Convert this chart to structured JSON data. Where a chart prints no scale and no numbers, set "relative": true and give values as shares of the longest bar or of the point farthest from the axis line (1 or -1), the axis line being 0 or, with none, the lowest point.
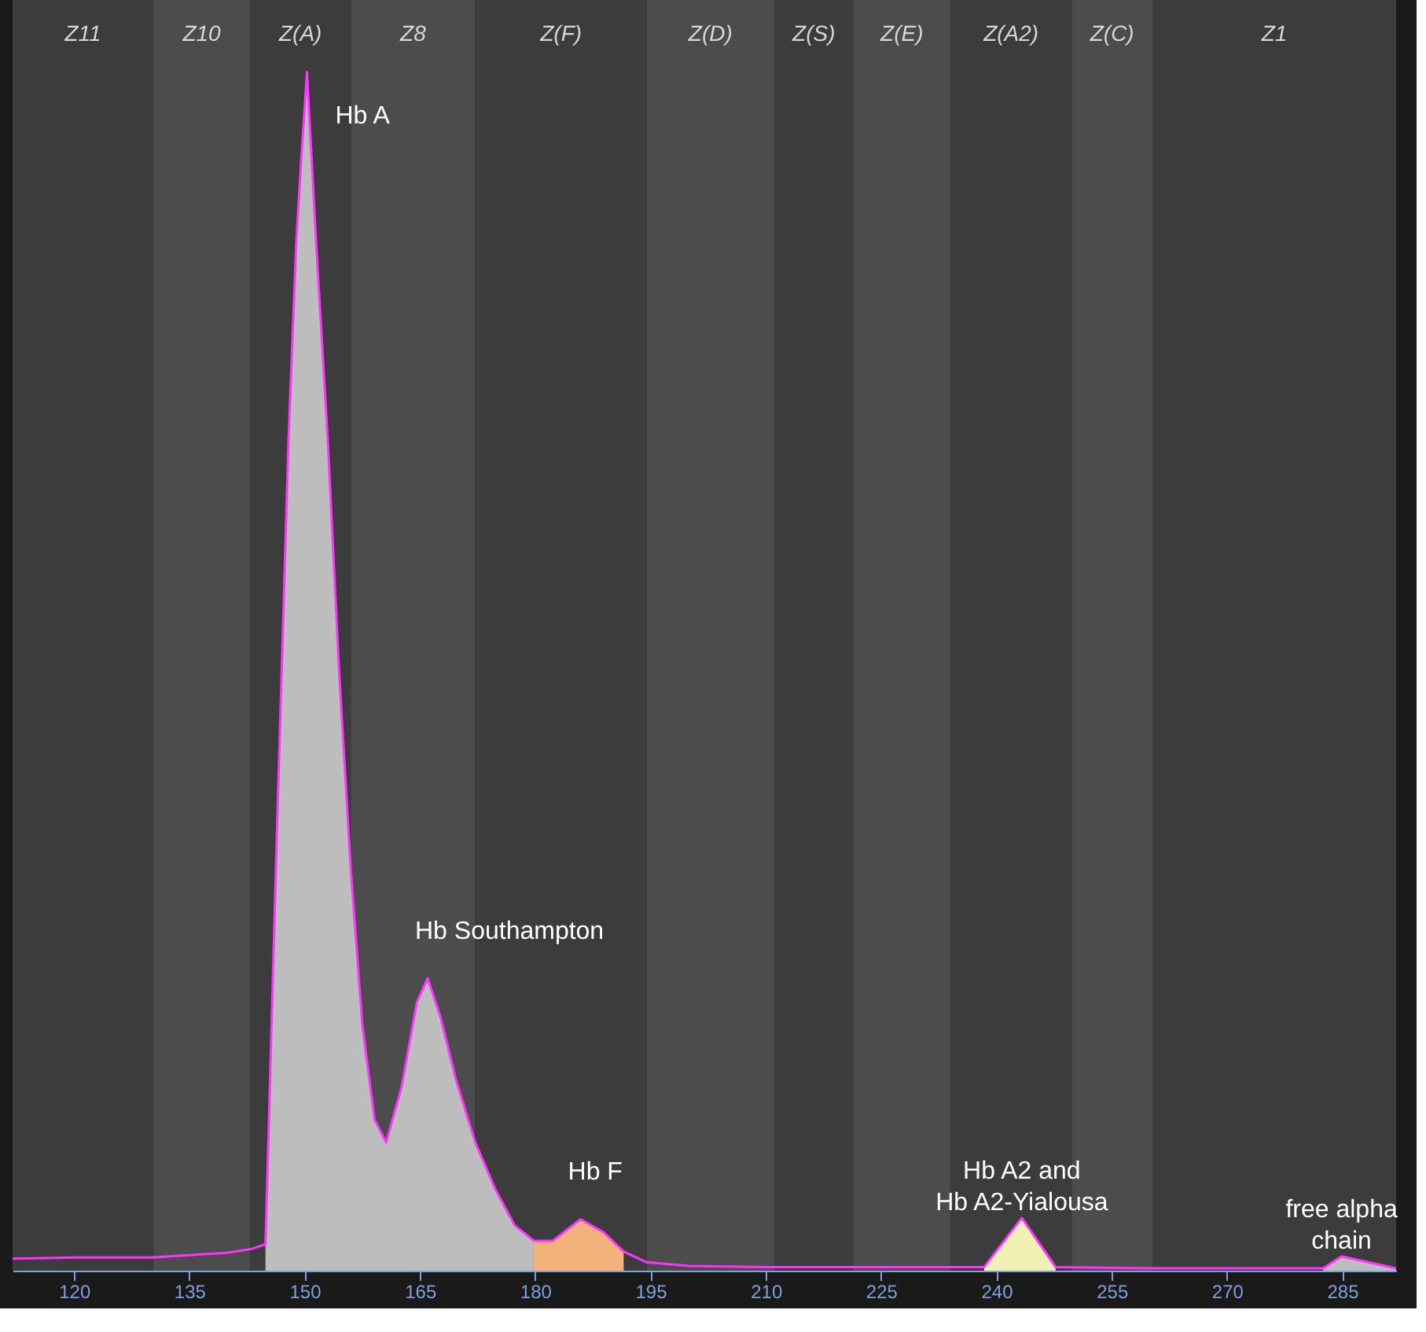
{
  "chart_data": {
    "type": "line",
    "relative": true,
    "xlim": [
      112,
      292
    ],
    "xticks": [
      120,
      135,
      150,
      165,
      180,
      195,
      210,
      225,
      240,
      255,
      270,
      285
    ],
    "series": [
      {
        "type": "area",
        "color": "#bdbdbd",
        "x": [
          144.9,
          146.4,
          147.9,
          148.9,
          149.5,
          150.3,
          151.5,
          153.0,
          154.5,
          156.0,
          157.5,
          159.1,
          160.6,
          162.6,
          164.6,
          166.0,
          167.7,
          169.7,
          172.2,
          174.8,
          177.3,
          179.8
        ],
        "values": [
          0.022,
          0.368,
          0.694,
          0.857,
          0.922,
          1.0,
          0.857,
          0.694,
          0.498,
          0.335,
          0.205,
          0.126,
          0.107,
          0.153,
          0.224,
          0.244,
          0.211,
          0.159,
          0.107,
          0.068,
          0.038,
          0.025
        ]
      },
      {
        "type": "area",
        "color": "#f2b27a",
        "x": [
          179.8,
          182.3,
          185.9,
          188.9,
          191.5
        ],
        "values": [
          0.025,
          0.025,
          0.043,
          0.032,
          0.016
        ]
      },
      {
        "type": "area",
        "color": "#f3f0b4",
        "x": [
          238.4,
          243.3,
          247.7
        ],
        "values": [
          0.003,
          0.044,
          0.003
        ]
      },
      {
        "type": "area",
        "color": "#bdbdbd",
        "x": [
          282.5,
          284.9,
          292
        ],
        "values": [
          0.002,
          0.012,
          0.002
        ]
      },
      {
        "color": "#ff33ff",
        "x": [
          112,
          120,
          130,
          135,
          140,
          143,
          144.9,
          146.4,
          147.9,
          148.9,
          149.5,
          150.3,
          151.5,
          153.0,
          154.5,
          156.0,
          157.5,
          159.1,
          160.6,
          162.6,
          164.6,
          166.0,
          167.7,
          169.7,
          172.2,
          174.8,
          177.3,
          179.8,
          182.3,
          185.9,
          188.9,
          191.5,
          194.5,
          200,
          210,
          225,
          238.4,
          243.3,
          247.7,
          260,
          275,
          282.5,
          284.9,
          292
        ],
        "values": [
          0.01,
          0.011,
          0.011,
          0.013,
          0.015,
          0.018,
          0.022,
          0.368,
          0.694,
          0.857,
          0.922,
          1.0,
          0.857,
          0.694,
          0.498,
          0.335,
          0.205,
          0.126,
          0.107,
          0.153,
          0.224,
          0.244,
          0.211,
          0.159,
          0.107,
          0.068,
          0.038,
          0.025,
          0.025,
          0.043,
          0.032,
          0.016,
          0.007,
          0.004,
          0.003,
          0.003,
          0.003,
          0.044,
          0.003,
          0.002,
          0.002,
          0.002,
          0.012,
          0.002
        ]
      }
    ],
    "bands": [
      {
        "axis": "x",
        "from": 112,
        "to": 130.3,
        "label": "Z11",
        "color": "#3c3c3c"
      },
      {
        "axis": "x",
        "from": 130.3,
        "to": 142.9,
        "label": "Z10",
        "color": "#4c4c4c"
      },
      {
        "axis": "x",
        "from": 142.9,
        "to": 156.0,
        "label": "Z(A)",
        "color": "#3c3c3c"
      },
      {
        "axis": "x",
        "from": 156.0,
        "to": 172.2,
        "label": "Z8",
        "color": "#4c4c4c"
      },
      {
        "axis": "x",
        "from": 172.2,
        "to": 194.5,
        "label": "Z(F)",
        "color": "#3c3c3c"
      },
      {
        "axis": "x",
        "from": 194.5,
        "to": 211.1,
        "label": "Z(D)",
        "color": "#4c4c4c"
      },
      {
        "axis": "x",
        "from": 211.1,
        "to": 221.4,
        "label": "Z(S)",
        "color": "#3c3c3c"
      },
      {
        "axis": "x",
        "from": 221.4,
        "to": 234.0,
        "label": "Z(E)",
        "color": "#4c4c4c"
      },
      {
        "axis": "x",
        "from": 234.0,
        "to": 249.8,
        "label": "Z(A2)",
        "color": "#3c3c3c"
      },
      {
        "axis": "x",
        "from": 249.8,
        "to": 260.3,
        "label": "Z(C)",
        "color": "#4c4c4c"
      },
      {
        "axis": "x",
        "from": 260.3,
        "to": 292,
        "label": "Z1",
        "color": "#3c3c3c"
      }
    ],
    "annotations": [
      {
        "text": "Hb A",
        "x": 150.3,
        "y": 1.0
      },
      {
        "text": "Hb Southampton",
        "x": 166.0,
        "y": 0.244
      },
      {
        "text": "Hb F",
        "x": 185.9,
        "y": 0.043
      },
      {
        "text": "Hb A2 and\nHb A2-Yialousa",
        "x": 243.3,
        "y": 0.044
      },
      {
        "text": "free alpha\nchain",
        "x": 284.9,
        "y": 0.012
      }
    ]
  }
}
